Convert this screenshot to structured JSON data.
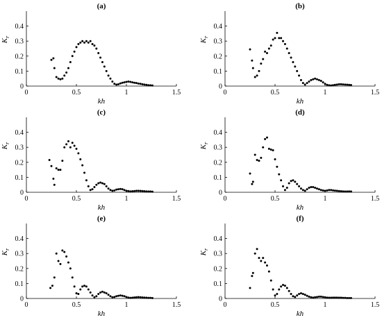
{
  "chart_data": [
    {
      "type": "scatter",
      "title": "(a)",
      "xlabel": "kh",
      "ylabel": "K",
      "ylabel_sub": "r",
      "xlim": [
        0,
        1.5
      ],
      "ylim": [
        0,
        0.5
      ],
      "xticks": [
        "0",
        "0.5",
        "1",
        "1.5"
      ],
      "yticks": [
        "0",
        "0.1",
        "0.2",
        "0.3",
        "0.4"
      ],
      "marker_color": "#000000",
      "series": [
        {
          "x": [
            0.25,
            0.27,
            0.28,
            0.3,
            0.32,
            0.34,
            0.36,
            0.38,
            0.4,
            0.42,
            0.44,
            0.46,
            0.48,
            0.5,
            0.52,
            0.54,
            0.56,
            0.58,
            0.6,
            0.62,
            0.64,
            0.66,
            0.68,
            0.7,
            0.72,
            0.74,
            0.76,
            0.78,
            0.8,
            0.82,
            0.84,
            0.86,
            0.88,
            0.9,
            0.92,
            0.94,
            0.96,
            0.98,
            1.0,
            1.02,
            1.04,
            1.06,
            1.08,
            1.1,
            1.12,
            1.14,
            1.16,
            1.18,
            1.2,
            1.22,
            1.24,
            1.26
          ],
          "y": [
            0.175,
            0.185,
            0.12,
            0.06,
            0.05,
            0.045,
            0.05,
            0.07,
            0.09,
            0.12,
            0.16,
            0.2,
            0.23,
            0.26,
            0.28,
            0.29,
            0.3,
            0.29,
            0.3,
            0.29,
            0.3,
            0.28,
            0.27,
            0.25,
            0.22,
            0.19,
            0.16,
            0.13,
            0.1,
            0.07,
            0.05,
            0.03,
            0.015,
            0.01,
            0.012,
            0.018,
            0.022,
            0.025,
            0.028,
            0.03,
            0.028,
            0.025,
            0.022,
            0.02,
            0.017,
            0.015,
            0.012,
            0.01,
            0.008,
            0.006,
            0.005,
            0.004
          ]
        }
      ]
    },
    {
      "type": "scatter",
      "title": "(b)",
      "xlabel": "kh",
      "ylabel": "K",
      "ylabel_sub": "r",
      "xlim": [
        0,
        1.5
      ],
      "ylim": [
        0,
        0.5
      ],
      "xticks": [
        "0",
        "0.5",
        "1",
        "1.5"
      ],
      "yticks": [
        "0",
        "0.1",
        "0.2",
        "0.3",
        "0.4"
      ],
      "marker_color": "#000000",
      "series": [
        {
          "x": [
            0.25,
            0.27,
            0.28,
            0.3,
            0.32,
            0.34,
            0.36,
            0.38,
            0.4,
            0.42,
            0.44,
            0.46,
            0.48,
            0.5,
            0.52,
            0.54,
            0.56,
            0.58,
            0.6,
            0.62,
            0.64,
            0.66,
            0.68,
            0.7,
            0.72,
            0.74,
            0.76,
            0.78,
            0.8,
            0.82,
            0.84,
            0.86,
            0.88,
            0.9,
            0.92,
            0.94,
            0.96,
            0.98,
            1.0,
            1.02,
            1.04,
            1.06,
            1.08,
            1.1,
            1.12,
            1.14,
            1.16,
            1.18,
            1.2,
            1.22,
            1.24,
            1.26
          ],
          "y": [
            0.245,
            0.17,
            0.12,
            0.06,
            0.07,
            0.1,
            0.15,
            0.18,
            0.23,
            0.22,
            0.25,
            0.27,
            0.31,
            0.32,
            0.355,
            0.32,
            0.32,
            0.3,
            0.28,
            0.25,
            0.22,
            0.19,
            0.16,
            0.13,
            0.1,
            0.07,
            0.04,
            0.02,
            0.01,
            0.02,
            0.03,
            0.04,
            0.045,
            0.05,
            0.045,
            0.04,
            0.035,
            0.025,
            0.015,
            0.008,
            0.005,
            0.004,
            0.006,
            0.008,
            0.01,
            0.012,
            0.012,
            0.011,
            0.01,
            0.009,
            0.008,
            0.007
          ]
        }
      ]
    },
    {
      "type": "scatter",
      "title": "(c)",
      "xlabel": "kh",
      "ylabel": "K",
      "ylabel_sub": "r",
      "xlim": [
        0,
        1.5
      ],
      "ylim": [
        0,
        0.5
      ],
      "xticks": [
        "0",
        "0.5",
        "1",
        "1.5"
      ],
      "yticks": [
        "0",
        "0.1",
        "0.2",
        "0.3",
        "0.4"
      ],
      "marker_color": "#000000",
      "series": [
        {
          "x": [
            0.23,
            0.25,
            0.27,
            0.28,
            0.3,
            0.32,
            0.34,
            0.36,
            0.38,
            0.4,
            0.42,
            0.44,
            0.46,
            0.48,
            0.5,
            0.52,
            0.54,
            0.56,
            0.58,
            0.6,
            0.62,
            0.64,
            0.66,
            0.68,
            0.7,
            0.72,
            0.74,
            0.76,
            0.78,
            0.8,
            0.82,
            0.84,
            0.86,
            0.88,
            0.9,
            0.92,
            0.94,
            0.96,
            0.98,
            1.0,
            1.02,
            1.04,
            1.06,
            1.08,
            1.1,
            1.12,
            1.14,
            1.16,
            1.18,
            1.2,
            1.22,
            1.24,
            1.26
          ],
          "y": [
            0.215,
            0.175,
            0.09,
            0.05,
            0.16,
            0.15,
            0.15,
            0.21,
            0.3,
            0.32,
            0.34,
            0.3,
            0.33,
            0.31,
            0.29,
            0.26,
            0.22,
            0.18,
            0.13,
            0.08,
            0.04,
            0.015,
            0.02,
            0.035,
            0.05,
            0.06,
            0.065,
            0.06,
            0.055,
            0.04,
            0.025,
            0.015,
            0.01,
            0.012,
            0.018,
            0.02,
            0.022,
            0.02,
            0.015,
            0.01,
            0.008,
            0.006,
            0.007,
            0.008,
            0.01,
            0.01,
            0.009,
            0.008,
            0.007,
            0.006,
            0.005,
            0.005,
            0.004
          ]
        }
      ]
    },
    {
      "type": "scatter",
      "title": "(d)",
      "xlabel": "kh",
      "ylabel": "K",
      "ylabel_sub": "r",
      "xlim": [
        0,
        1.5
      ],
      "ylim": [
        0,
        0.5
      ],
      "xticks": [
        "0",
        "0.5",
        "1",
        "1.5"
      ],
      "yticks": [
        "0",
        "0.1",
        "0.2",
        "0.3",
        "0.4"
      ],
      "marker_color": "#000000",
      "series": [
        {
          "x": [
            0.25,
            0.27,
            0.28,
            0.3,
            0.32,
            0.34,
            0.36,
            0.38,
            0.4,
            0.42,
            0.44,
            0.46,
            0.48,
            0.5,
            0.52,
            0.54,
            0.56,
            0.58,
            0.6,
            0.62,
            0.64,
            0.66,
            0.68,
            0.7,
            0.72,
            0.74,
            0.76,
            0.78,
            0.8,
            0.82,
            0.84,
            0.86,
            0.88,
            0.9,
            0.92,
            0.94,
            0.96,
            0.98,
            1.0,
            1.02,
            1.04,
            1.06,
            1.08,
            1.1,
            1.12,
            1.14,
            1.16,
            1.18,
            1.2,
            1.22,
            1.24,
            1.26
          ],
          "y": [
            0.125,
            0.055,
            0.07,
            0.25,
            0.215,
            0.21,
            0.23,
            0.3,
            0.355,
            0.365,
            0.29,
            0.285,
            0.28,
            0.22,
            0.17,
            0.12,
            0.08,
            0.04,
            0.015,
            0.03,
            0.06,
            0.075,
            0.08,
            0.07,
            0.055,
            0.04,
            0.025,
            0.015,
            0.01,
            0.02,
            0.03,
            0.035,
            0.035,
            0.03,
            0.025,
            0.02,
            0.015,
            0.012,
            0.01,
            0.012,
            0.015,
            0.015,
            0.013,
            0.011,
            0.01,
            0.008,
            0.007,
            0.006,
            0.005,
            0.005,
            0.006,
            0.005
          ]
        }
      ]
    },
    {
      "type": "scatter",
      "title": "(e)",
      "xlabel": "kh",
      "ylabel": "K",
      "ylabel_sub": "r",
      "xlim": [
        0,
        1.5
      ],
      "ylim": [
        0,
        0.5
      ],
      "xticks": [
        "0",
        "0.5",
        "1",
        "1.5"
      ],
      "yticks": [
        "0",
        "0.1",
        "0.2",
        "0.3",
        "0.4"
      ],
      "marker_color": "#000000",
      "series": [
        {
          "x": [
            0.24,
            0.26,
            0.28,
            0.3,
            0.32,
            0.34,
            0.36,
            0.38,
            0.4,
            0.42,
            0.44,
            0.46,
            0.48,
            0.5,
            0.52,
            0.54,
            0.56,
            0.58,
            0.6,
            0.62,
            0.64,
            0.66,
            0.68,
            0.7,
            0.72,
            0.74,
            0.76,
            0.78,
            0.8,
            0.82,
            0.84,
            0.86,
            0.88,
            0.9,
            0.92,
            0.94,
            0.96,
            0.98,
            1.0,
            1.02,
            1.04,
            1.06,
            1.08,
            1.1,
            1.12,
            1.14,
            1.16,
            1.18,
            1.2,
            1.22,
            1.24,
            1.26
          ],
          "y": [
            0.07,
            0.085,
            0.14,
            0.3,
            0.25,
            0.23,
            0.32,
            0.31,
            0.28,
            0.24,
            0.2,
            0.14,
            0.08,
            0.035,
            0.03,
            0.06,
            0.08,
            0.085,
            0.08,
            0.06,
            0.04,
            0.02,
            0.008,
            0.015,
            0.03,
            0.04,
            0.045,
            0.04,
            0.035,
            0.025,
            0.015,
            0.008,
            0.01,
            0.015,
            0.018,
            0.02,
            0.018,
            0.015,
            0.01,
            0.006,
            0.004,
            0.005,
            0.007,
            0.008,
            0.009,
            0.008,
            0.007,
            0.006,
            0.005,
            0.004,
            0.004,
            0.003
          ]
        }
      ]
    },
    {
      "type": "scatter",
      "title": "(f)",
      "xlabel": "kh",
      "ylabel": "K",
      "ylabel_sub": "r",
      "xlim": [
        0,
        1.5
      ],
      "ylim": [
        0,
        0.5
      ],
      "xticks": [
        "0",
        "0.5",
        "1",
        "1.5"
      ],
      "yticks": [
        "0",
        "0.1",
        "0.2",
        "0.3",
        "0.4"
      ],
      "marker_color": "#000000",
      "series": [
        {
          "x": [
            0.25,
            0.27,
            0.28,
            0.3,
            0.32,
            0.34,
            0.36,
            0.38,
            0.4,
            0.42,
            0.44,
            0.46,
            0.48,
            0.5,
            0.52,
            0.54,
            0.56,
            0.58,
            0.6,
            0.62,
            0.64,
            0.66,
            0.68,
            0.7,
            0.72,
            0.74,
            0.76,
            0.78,
            0.8,
            0.82,
            0.84,
            0.86,
            0.88,
            0.9,
            0.92,
            0.94,
            0.96,
            0.98,
            1.0,
            1.02,
            1.04,
            1.06,
            1.08,
            1.1,
            1.12,
            1.14,
            1.16,
            1.18,
            1.2,
            1.22,
            1.24,
            1.26
          ],
          "y": [
            0.07,
            0.15,
            0.17,
            0.3,
            0.33,
            0.27,
            0.25,
            0.27,
            0.24,
            0.22,
            0.18,
            0.12,
            0.06,
            0.02,
            0.03,
            0.06,
            0.08,
            0.09,
            0.085,
            0.07,
            0.05,
            0.03,
            0.015,
            0.01,
            0.02,
            0.03,
            0.035,
            0.03,
            0.025,
            0.018,
            0.012,
            0.008,
            0.006,
            0.008,
            0.01,
            0.012,
            0.012,
            0.01,
            0.008,
            0.006,
            0.005,
            0.005,
            0.006,
            0.006,
            0.006,
            0.005,
            0.005,
            0.004,
            0.004,
            0.003,
            0.003,
            0.003
          ]
        }
      ]
    }
  ]
}
